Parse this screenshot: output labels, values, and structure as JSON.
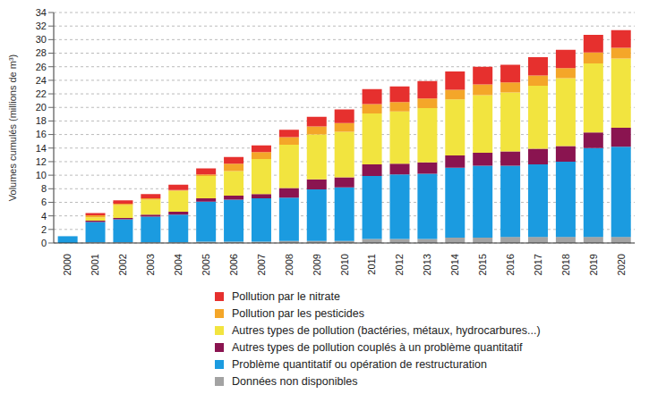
{
  "chart_data": {
    "type": "bar",
    "stacked": true,
    "grid": true,
    "legend": "bottom",
    "y_label": "Volumes cumulés (millions de m³)",
    "categories": [
      "2000",
      "2001",
      "2002",
      "2003",
      "2004",
      "2005",
      "2006",
      "2007",
      "2008",
      "2009",
      "2010",
      "2011",
      "2012",
      "2013",
      "2014",
      "2015",
      "2016",
      "2017",
      "2018",
      "2019",
      "2020"
    ],
    "ylim": [
      0,
      34
    ],
    "yticks": [
      0,
      2,
      4,
      6,
      8,
      10,
      12,
      14,
      16,
      18,
      20,
      22,
      24,
      26,
      28,
      30,
      32,
      34
    ],
    "series": [
      {
        "name": "Données non disponibles",
        "color": "#a3a3a3",
        "values": [
          0,
          0.1,
          0.1,
          0.1,
          0.1,
          0.2,
          0.2,
          0.2,
          0.3,
          0.3,
          0.3,
          0.6,
          0.6,
          0.6,
          0.8,
          0.8,
          0.9,
          0.9,
          0.9,
          0.9,
          0.9
        ]
      },
      {
        "name": "Problème quantitatif ou opération de restructuration",
        "color": "#1b9be0",
        "values": [
          1.0,
          3.0,
          3.4,
          3.8,
          4.1,
          5.9,
          6.2,
          6.4,
          6.4,
          7.6,
          7.9,
          9.3,
          9.5,
          9.6,
          10.3,
          10.6,
          10.5,
          10.7,
          11.1,
          13.1,
          13.3
        ]
      },
      {
        "name": "Autres types de pollution couplés à un problème quantitatif",
        "color": "#8a1450",
        "values": [
          0,
          0.2,
          0.2,
          0.3,
          0.4,
          0.5,
          0.6,
          0.6,
          1.4,
          1.5,
          1.5,
          1.7,
          1.6,
          1.7,
          1.8,
          1.9,
          2.1,
          2.3,
          2.3,
          2.3,
          2.8
        ]
      },
      {
        "name": "Autres types de pollution (bactéries, métaux, hydrocarbures...)",
        "color": "#f2e43f",
        "values": [
          0,
          0.5,
          1.9,
          2.2,
          3.1,
          3.3,
          3.6,
          5.2,
          6.4,
          6.6,
          6.7,
          7.5,
          7.7,
          8.0,
          8.3,
          8.5,
          8.7,
          9.3,
          10.0,
          10.2,
          10.2
        ]
      },
      {
        "name": "Pollution par les pesticides",
        "color": "#f4a629",
        "values": [
          0,
          0.3,
          0.2,
          0.2,
          0.1,
          0.2,
          1.1,
          1.0,
          1.1,
          1.2,
          1.3,
          1.4,
          1.4,
          1.4,
          1.4,
          1.6,
          1.5,
          1.5,
          1.5,
          1.6,
          1.6
        ]
      },
      {
        "name": "Pollution par le nitrate",
        "color": "#e6302e",
        "values": [
          0,
          0.3,
          0.5,
          0.6,
          0.8,
          0.9,
          1.0,
          1.0,
          1.1,
          1.4,
          2.0,
          2.2,
          2.3,
          2.6,
          2.7,
          2.6,
          2.6,
          2.7,
          2.7,
          2.6,
          2.6
        ]
      }
    ]
  }
}
